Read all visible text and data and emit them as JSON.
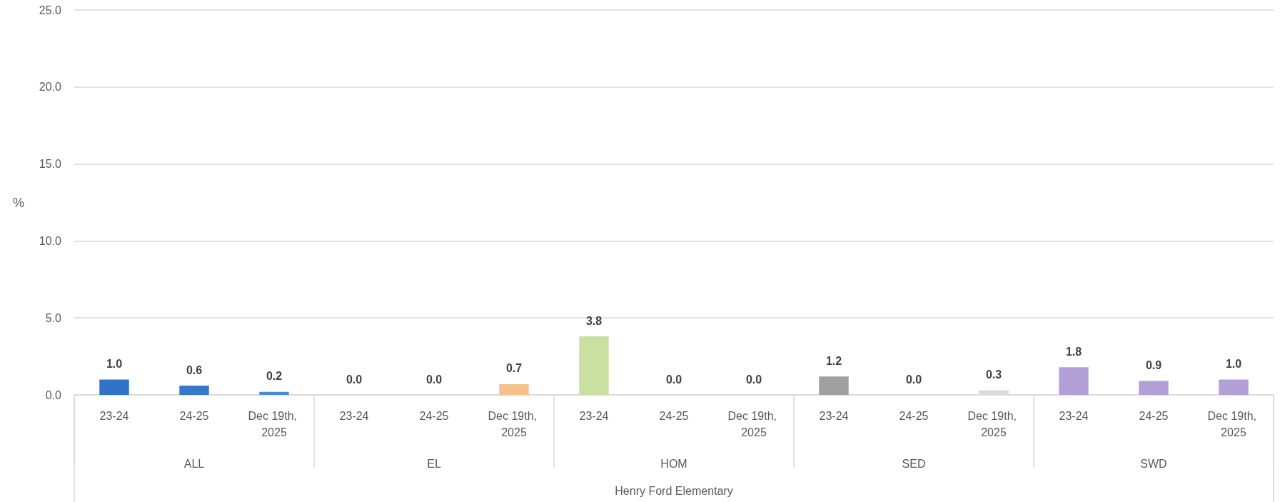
{
  "chart_data": {
    "type": "bar",
    "xlabel": "Henry Ford Elementary",
    "ylabel": "%",
    "categories": [
      "23-24",
      "24-25",
      "Dec 19th, 2025",
      "23-24",
      "24-25",
      "Dec 19th, 2025",
      "23-24",
      "24-25",
      "Dec 19th, 2025",
      "23-24",
      "24-25",
      "Dec 19th, 2025",
      "23-24",
      "24-25",
      "Dec 19th, 2025"
    ],
    "values": [
      1.0,
      0.6,
      0.2,
      0.0,
      0.0,
      0.7,
      3.8,
      0.0,
      0.0,
      1.2,
      0.0,
      0.3,
      1.8,
      0.9,
      1.0
    ],
    "colors": [
      "#2f73c6",
      "#3577c8",
      "#4a8ad6",
      "#f4b183",
      "#f4b183",
      "#f6c08c",
      "#c9e0a0",
      "#c9e0a0",
      "#c9e0a0",
      "#a0a0a0",
      "#a0a0a0",
      "#dadada",
      "#b4a0d8",
      "#b4a0d8",
      "#b4a0d8"
    ],
    "value_labels": [
      "1.0",
      "0.6",
      "0.2",
      "0.0",
      "0.0",
      "0.7",
      "3.8",
      "0.0",
      "0.0",
      "1.2",
      "0.0",
      "0.3",
      "1.8",
      "0.9",
      "1.0"
    ],
    "annotations": [
      "ALL",
      "EL",
      "HOM",
      "SED",
      "SWD"
    ],
    "ylim": [
      0,
      25
    ],
    "yticks": [
      {
        "value": 0,
        "label": "0.0"
      },
      {
        "value": 5,
        "label": "5.0"
      },
      {
        "value": 10,
        "label": "10.0"
      },
      {
        "value": 15,
        "label": "15.0"
      },
      {
        "value": 20,
        "label": "20.0"
      },
      {
        "value": 25,
        "label": "25.0"
      }
    ],
    "grid": "y"
  }
}
